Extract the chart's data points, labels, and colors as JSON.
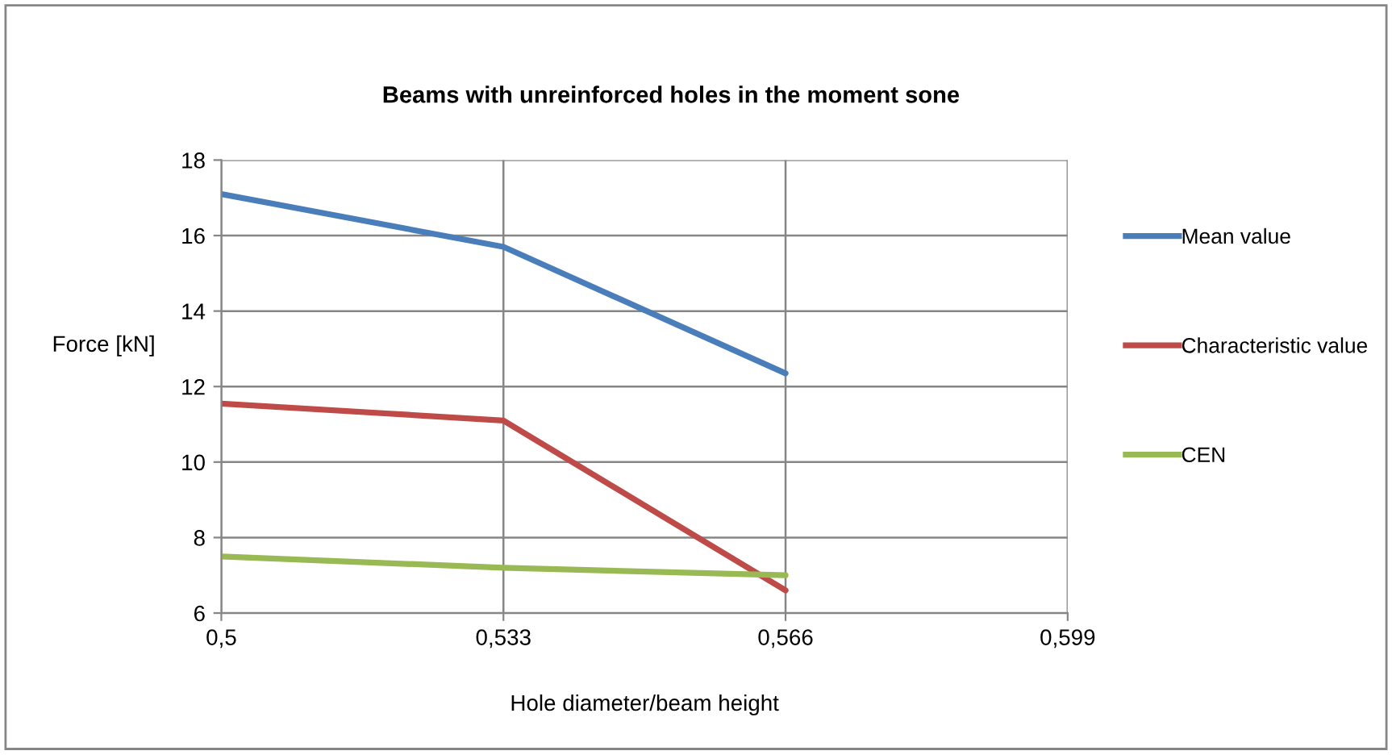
{
  "chart_data": {
    "type": "line",
    "title": "Beams with unreinforced holes in the moment sone",
    "xlabel": "Hole diameter/beam height",
    "ylabel": "Force [kN]",
    "x": [
      0.5,
      0.533,
      0.566
    ],
    "series": [
      {
        "name": "Mean value",
        "color": "#4a7ebb",
        "values": [
          17.1,
          15.7,
          12.35
        ]
      },
      {
        "name": "Characteristic value",
        "color": "#be4b48",
        "values": [
          11.55,
          11.1,
          6.6
        ]
      },
      {
        "name": "CEN",
        "color": "#98b954",
        "values": [
          7.5,
          7.2,
          7.0
        ]
      }
    ],
    "xlim": [
      0.5,
      0.599
    ],
    "xticks": [
      {
        "value": 0.5,
        "label": "0,5"
      },
      {
        "value": 0.533,
        "label": "0,533"
      },
      {
        "value": 0.566,
        "label": "0,566"
      },
      {
        "value": 0.599,
        "label": "0,599"
      }
    ],
    "ylim": [
      6,
      18
    ],
    "yticks": [
      6,
      8,
      10,
      12,
      14,
      16,
      18
    ],
    "grid": true,
    "legend": "right",
    "marker": "none",
    "line_style": "solid"
  }
}
